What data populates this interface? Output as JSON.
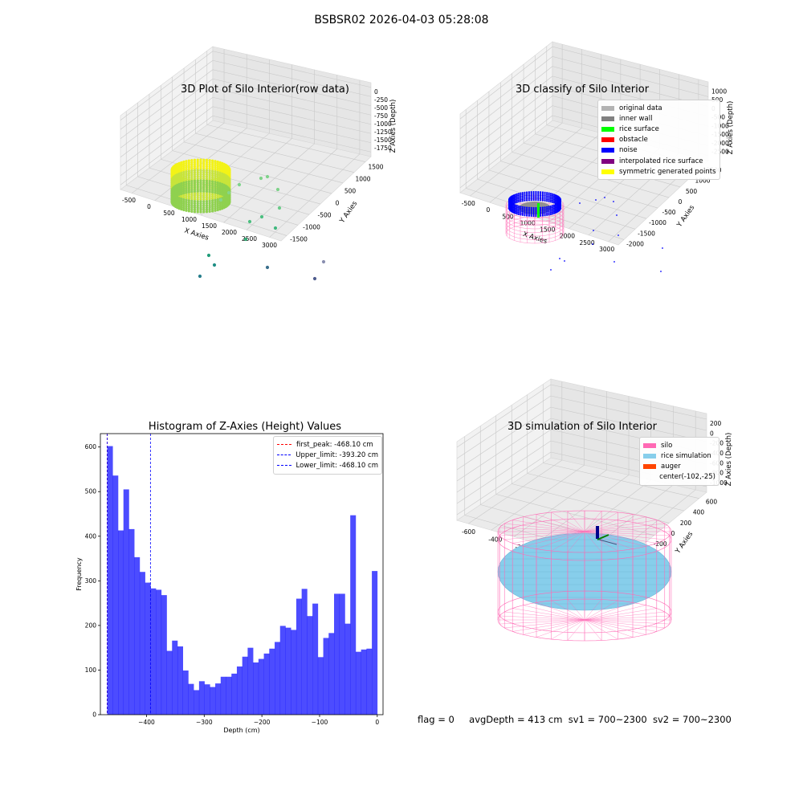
{
  "suptitle": "BSBSR02 2026-04-03 05:28:08",
  "footer": {
    "flag": "flag = 0",
    "avg_depth": "avgDepth = 413 cm",
    "sv1": "sv1 = 700~2300",
    "sv2": "sv2 = 700~2300"
  },
  "panels": {
    "raw": {
      "title": "3D Plot of Silo Interior(row data)",
      "xlabel": "X Axies",
      "ylabel": "Y Axies",
      "zlabel": "Z Axies (Depth)",
      "xticks": [
        "-500",
        "0",
        "500",
        "1000",
        "1500",
        "2000",
        "2500",
        "3000"
      ],
      "yticks": [
        "-1500",
        "-1000",
        "-500",
        "0",
        "500",
        "1000",
        "1500"
      ],
      "zticks": [
        "0",
        "-250",
        "-500",
        "-750",
        "-1000",
        "-1250",
        "-1500",
        "-1750"
      ]
    },
    "classify": {
      "title": "3D classify of Silo Interior",
      "xlabel": "X Axies",
      "ylabel": "Y Axies",
      "zlabel": "Z Axies (Depth)",
      "xticks": [
        "-500",
        "0",
        "500",
        "1000",
        "1500",
        "2000",
        "2500",
        "3000"
      ],
      "yticks": [
        "-2000",
        "-1500",
        "-1000",
        "-500",
        "0",
        "500",
        "1000",
        "1500"
      ],
      "zticks": [
        "1000",
        "500",
        "0",
        "-500",
        "-1000",
        "-1500",
        "-2000",
        "-2500"
      ],
      "legend": [
        {
          "label": "original data",
          "color": "#b3b3b3"
        },
        {
          "label": "inner wall",
          "color": "#808080"
        },
        {
          "label": "rice surface",
          "color": "#00ff00"
        },
        {
          "label": "obstacle",
          "color": "#ff0000"
        },
        {
          "label": "noise",
          "color": "#0000ff"
        },
        {
          "label": "interpolated rice surface",
          "color": "#800080"
        },
        {
          "label": "symmetric generated points",
          "color": "#ffff00"
        }
      ]
    },
    "simulation": {
      "title": "3D simulation of Silo Interior",
      "xlabel": "X Axies",
      "ylabel": "Y Axies",
      "zlabel": "Z Axies (Depth)",
      "xticks": [
        "-600",
        "-400",
        "-200",
        "0",
        "200",
        "400"
      ],
      "yticks": [
        "-600",
        "-400",
        "-200",
        "0",
        "200",
        "400",
        "600"
      ],
      "zticks": [
        "200",
        "0",
        "-200",
        "-400",
        "-600",
        "-800",
        "-1000"
      ],
      "legend": [
        {
          "label": "silo",
          "color": "#ff69b4"
        },
        {
          "label": "rice simulation",
          "color": "#87ceeb"
        },
        {
          "label": "auger",
          "color": "#ff4500"
        },
        {
          "label": "center(-102,-25)",
          "color": ""
        }
      ]
    }
  },
  "chart_data": {
    "type": "bar",
    "title": "Histogram of Z-Axies (Height) Values",
    "xlabel": "Depth (cm)",
    "ylabel": "Frequency",
    "xlim": [
      -480,
      10
    ],
    "ylim": [
      0,
      630
    ],
    "xticks": [
      -400,
      -300,
      -200,
      -100,
      0
    ],
    "yticks": [
      0,
      100,
      200,
      300,
      400,
      500,
      600
    ],
    "bar_color": "#0000ff",
    "bin_start": -468.1,
    "bin_width": 9.362,
    "values": [
      602,
      536,
      413,
      505,
      416,
      353,
      320,
      296,
      283,
      280,
      268,
      143,
      166,
      153,
      99,
      69,
      55,
      75,
      68,
      62,
      70,
      85,
      85,
      92,
      108,
      130,
      150,
      117,
      125,
      137,
      148,
      163,
      199,
      195,
      190,
      260,
      282,
      221,
      249,
      129,
      172,
      183,
      271,
      271,
      204,
      447,
      141,
      146,
      148,
      322
    ],
    "lines": [
      {
        "label": "first_peak: -468.10 cm",
        "x": -468.1,
        "color": "#ff0000"
      },
      {
        "label": "Upper_limit: -393.20 cm",
        "x": -393.2,
        "color": "#0000ff"
      },
      {
        "label": "Lower_limit: -468.10 cm",
        "x": -468.1,
        "color": "#0000ff"
      }
    ],
    "legend_position": "upper right"
  }
}
